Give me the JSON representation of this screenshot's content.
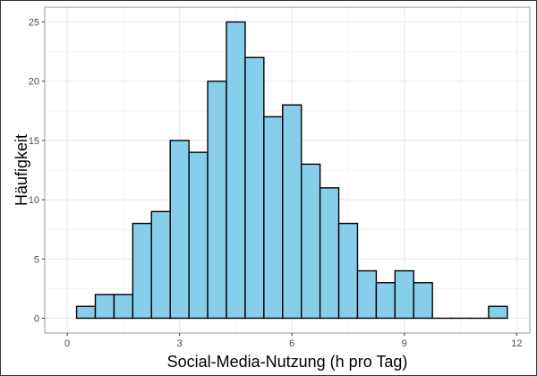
{
  "chart_data": {
    "type": "bar",
    "subtype": "histogram",
    "title": "",
    "xlabel": "Social-Media-Nutzung (h pro Tag)",
    "ylabel": "Häufigkeit",
    "bin_width": 0.5,
    "bin_start": 0.25,
    "bins": [
      {
        "x0": 0.25,
        "x1": 0.75,
        "count": 1
      },
      {
        "x0": 0.75,
        "x1": 1.25,
        "count": 2
      },
      {
        "x0": 1.25,
        "x1": 1.75,
        "count": 2
      },
      {
        "x0": 1.75,
        "x1": 2.25,
        "count": 8
      },
      {
        "x0": 2.25,
        "x1": 2.75,
        "count": 9
      },
      {
        "x0": 2.75,
        "x1": 3.25,
        "count": 15
      },
      {
        "x0": 3.25,
        "x1": 3.75,
        "count": 14
      },
      {
        "x0": 3.75,
        "x1": 4.25,
        "count": 20
      },
      {
        "x0": 4.25,
        "x1": 4.75,
        "count": 25
      },
      {
        "x0": 4.75,
        "x1": 5.25,
        "count": 22
      },
      {
        "x0": 5.25,
        "x1": 5.75,
        "count": 17
      },
      {
        "x0": 5.75,
        "x1": 6.25,
        "count": 18
      },
      {
        "x0": 6.25,
        "x1": 6.75,
        "count": 13
      },
      {
        "x0": 6.75,
        "x1": 7.25,
        "count": 11
      },
      {
        "x0": 7.25,
        "x1": 7.75,
        "count": 8
      },
      {
        "x0": 7.75,
        "x1": 8.25,
        "count": 4
      },
      {
        "x0": 8.25,
        "x1": 8.75,
        "count": 3
      },
      {
        "x0": 8.75,
        "x1": 9.25,
        "count": 4
      },
      {
        "x0": 9.25,
        "x1": 9.75,
        "count": 3
      },
      {
        "x0": 9.75,
        "x1": 10.25,
        "count": 0
      },
      {
        "x0": 10.25,
        "x1": 10.75,
        "count": 0
      },
      {
        "x0": 10.75,
        "x1": 11.25,
        "count": 0
      },
      {
        "x0": 11.25,
        "x1": 11.75,
        "count": 1
      }
    ],
    "x_ticks": [
      0,
      3,
      6,
      9,
      12
    ],
    "x_tick_labels": [
      "0",
      "3",
      "6",
      "9",
      "12"
    ],
    "y_ticks": [
      0,
      5,
      10,
      15,
      20,
      25
    ],
    "y_tick_labels": [
      "0",
      "5",
      "10",
      "15",
      "20",
      "25"
    ],
    "xlim": [
      -0.6,
      12.35
    ],
    "ylim": [
      -1.25,
      26.25
    ],
    "grid": true,
    "legend": null,
    "colors": {
      "bar_fill": "#87CEEB",
      "bar_stroke": "#000000",
      "grid": "#EBEBEB",
      "panel_border": "#999999",
      "tick_text": "#4D4D4D",
      "outer_border": "#333333"
    }
  }
}
